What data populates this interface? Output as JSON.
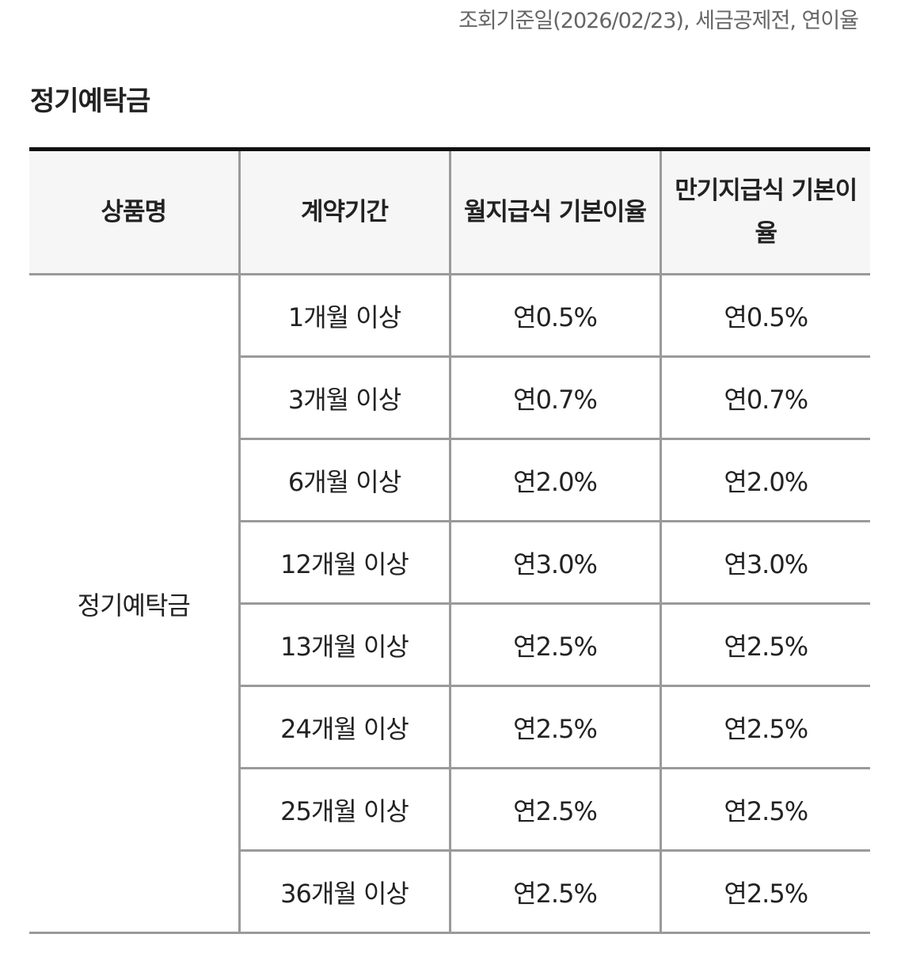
{
  "note": "조회기준일(2026/02/23), 세금공제전, 연이율",
  "section_title": "정기예탁금",
  "table": {
    "headers": [
      "상품명",
      "계약기간",
      "월지급식 기본이율",
      "만기지급식 기본이율"
    ],
    "product_name": "정기예탁금",
    "rows": [
      {
        "period": "1개월 이상",
        "monthly": "연0.5%",
        "maturity": "연0.5%"
      },
      {
        "period": "3개월 이상",
        "monthly": "연0.7%",
        "maturity": "연0.7%"
      },
      {
        "period": "6개월 이상",
        "monthly": "연2.0%",
        "maturity": "연2.0%"
      },
      {
        "period": "12개월 이상",
        "monthly": "연3.0%",
        "maturity": "연3.0%"
      },
      {
        "period": "13개월 이상",
        "monthly": "연2.5%",
        "maturity": "연2.5%"
      },
      {
        "period": "24개월 이상",
        "monthly": "연2.5%",
        "maturity": "연2.5%"
      },
      {
        "period": "25개월 이상",
        "monthly": "연2.5%",
        "maturity": "연2.5%"
      },
      {
        "period": "36개월 이상",
        "monthly": "연2.5%",
        "maturity": "연2.5%"
      }
    ]
  }
}
